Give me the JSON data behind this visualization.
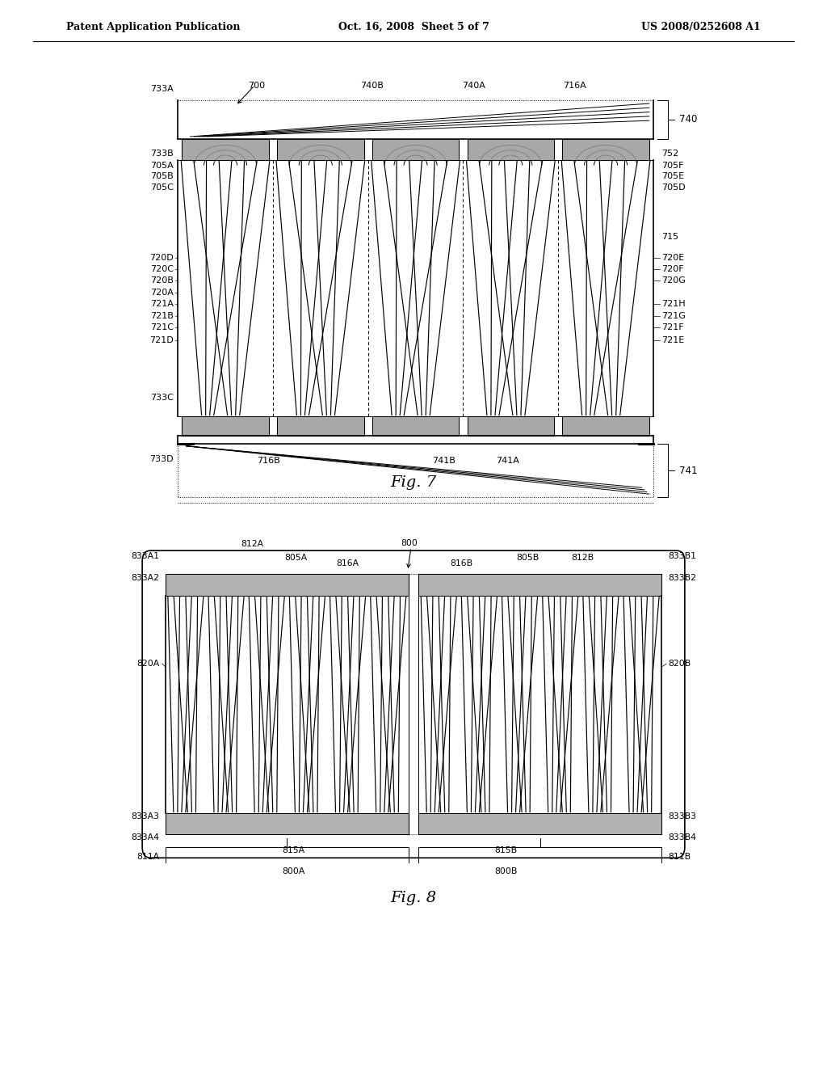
{
  "header_left": "Patent Application Publication",
  "header_center": "Oct. 16, 2008  Sheet 5 of 7",
  "header_right": "US 2008/0252608 A1",
  "fig7_title": "Fig. 7",
  "fig8_title": "Fig. 8",
  "background": "#ffffff",
  "line_color": "#000000"
}
